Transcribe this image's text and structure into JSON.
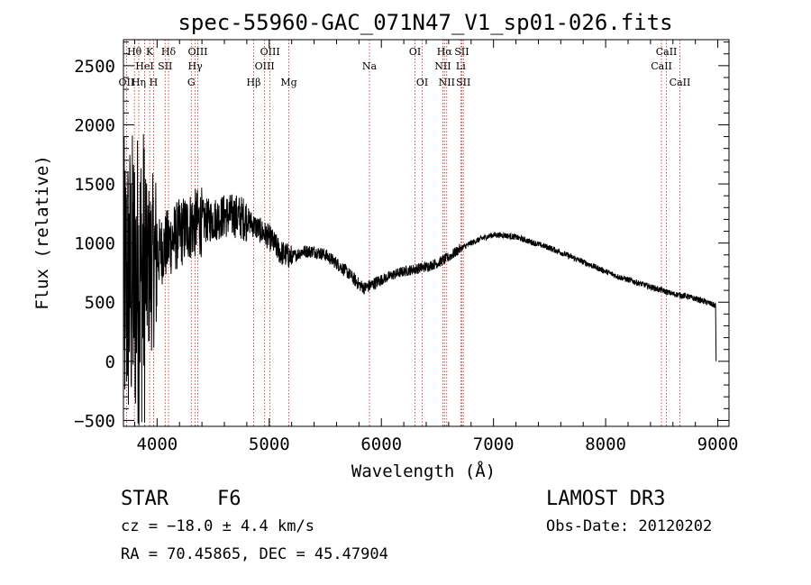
{
  "chart_data": {
    "type": "line",
    "title": "spec-55960-GAC_071N47_V1_sp01-026.fits",
    "xlabel": "Wavelength (Å)",
    "ylabel": "Flux (relative)",
    "xlim": [
      3700,
      9100
    ],
    "ylim": [
      -550,
      2720
    ],
    "xticks": [
      4000,
      5000,
      6000,
      7000,
      8000,
      9000
    ],
    "yticks": [
      -500,
      0,
      500,
      1000,
      1500,
      2000,
      2500
    ],
    "series": [
      {
        "name": "flux",
        "smooth_x": [
          3700,
          3800,
          3900,
          4000,
          4100,
          4200,
          4300,
          4400,
          4500,
          4600,
          4700,
          4800,
          4900,
          5000,
          5100,
          5200,
          5300,
          5400,
          5500,
          5600,
          5700,
          5800,
          5850,
          5900,
          6000,
          6100,
          6200,
          6300,
          6400,
          6500,
          6600,
          6700,
          6800,
          6900,
          7000,
          7100,
          7200,
          7300,
          7400,
          7500,
          7600,
          7700,
          7800,
          7900,
          8000,
          8100,
          8200,
          8300,
          8400,
          8500,
          8600,
          8700,
          8800,
          8900,
          8980
        ],
        "smooth_y": [
          600,
          700,
          750,
          900,
          1000,
          1080,
          1150,
          1180,
          1200,
          1230,
          1230,
          1200,
          1120,
          1050,
          920,
          880,
          930,
          930,
          900,
          830,
          750,
          650,
          620,
          640,
          690,
          730,
          760,
          780,
          800,
          830,
          880,
          950,
          1000,
          1040,
          1070,
          1065,
          1050,
          1020,
          990,
          960,
          920,
          880,
          840,
          800,
          760,
          720,
          690,
          660,
          630,
          600,
          570,
          555,
          530,
          500,
          470
        ]
      }
    ],
    "lines": [
      {
        "name": "OII",
        "x": 3727,
        "row": 3
      },
      {
        "name": "Hθ",
        "x": 3798,
        "row": 1
      },
      {
        "name": "Hη",
        "x": 3836,
        "row": 3
      },
      {
        "name": "HeI",
        "x": 3889,
        "row": 2
      },
      {
        "name": "K",
        "x": 3934,
        "row": 1
      },
      {
        "name": "H",
        "x": 3969,
        "row": 3
      },
      {
        "name": "Hδ",
        "x": 4102,
        "row": 1
      },
      {
        "name": "SII",
        "x": 4072,
        "row": 2
      },
      {
        "name": "Hγ",
        "x": 4340,
        "row": 2
      },
      {
        "name": "G",
        "x": 4305,
        "row": 3
      },
      {
        "name": "OIII",
        "x": 4363,
        "row": 1
      },
      {
        "name": "Hβ",
        "x": 4861,
        "row": 3
      },
      {
        "name": "OIII",
        "x": 4959,
        "row": 2
      },
      {
        "name": "OIII",
        "x": 5007,
        "row": 1
      },
      {
        "name": "Mg",
        "x": 5175,
        "row": 3
      },
      {
        "name": "Na",
        "x": 5894,
        "row": 2
      },
      {
        "name": "OI",
        "x": 6300,
        "row": 1
      },
      {
        "name": "OI",
        "x": 6364,
        "row": 3
      },
      {
        "name": "NII",
        "x": 6548,
        "row": 2
      },
      {
        "name": "Hα",
        "x": 6563,
        "row": 1
      },
      {
        "name": "NII",
        "x": 6583,
        "row": 3
      },
      {
        "name": "Li",
        "x": 6708,
        "row": 2
      },
      {
        "name": "SII",
        "x": 6717,
        "row": 1
      },
      {
        "name": "SII",
        "x": 6731,
        "row": 3
      },
      {
        "name": "CaII",
        "x": 8498,
        "row": 2
      },
      {
        "name": "CaII",
        "x": 8542,
        "row": 1
      },
      {
        "name": "CaII",
        "x": 8662,
        "row": 3
      }
    ]
  },
  "info": {
    "class": "STAR",
    "subclass": "F6",
    "cz": "cz = −18.0 ± 4.4 km/s",
    "radec": "RA =  70.45865, DEC =  45.47904",
    "survey": "LAMOST DR3",
    "obsdate": "Obs-Date: 20120202"
  }
}
